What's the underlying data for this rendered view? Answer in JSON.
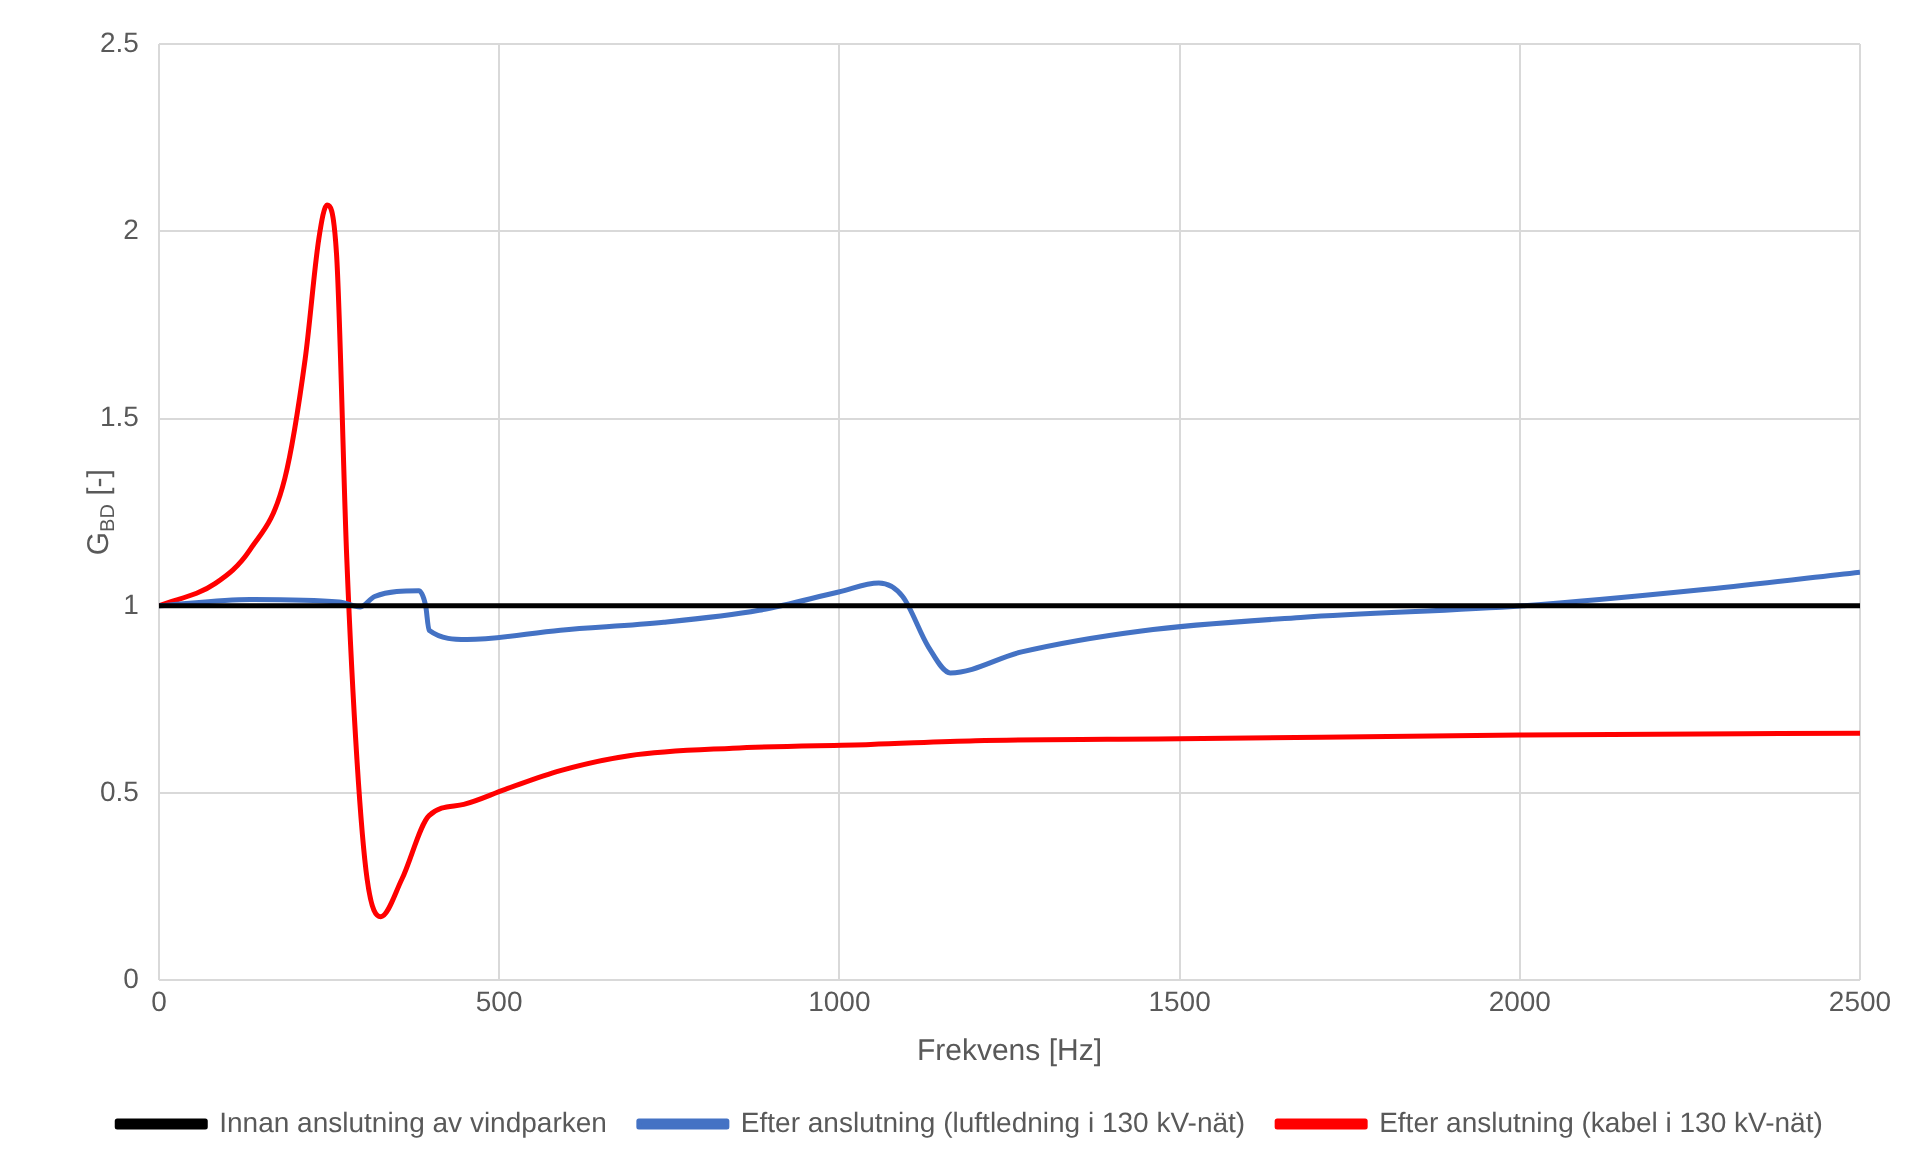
{
  "chart_data": {
    "type": "line",
    "xlabel": "Frekvens [Hz]",
    "ylabel": "G$_{BD}$ [-]",
    "xlim": [
      0,
      2500
    ],
    "xticks": [
      0,
      500,
      1000,
      1500,
      2000,
      2500
    ],
    "ylim": [
      0,
      2.5
    ],
    "yticks": [
      0,
      0.5,
      1,
      1.5,
      2,
      2.5
    ],
    "grid": true,
    "legend": "bottom",
    "marker": "none",
    "line_style": "solid",
    "series": [
      {
        "name": "Innan anslutning av vindparken",
        "color": "#000000",
        "x": [
          0,
          2500
        ],
        "values": [
          1,
          1
        ]
      },
      {
        "name": "Efter anslutning (luftledning i 130 kV-nät)",
        "color": "#4472c4",
        "x": [
          0,
          134,
          265,
          296,
          317,
          382,
          392,
          397,
          453,
          590,
          742,
          882,
          999,
          1058,
          1093,
          1131,
          1163,
          1268,
          1444,
          1678,
          2005,
          2263,
          2500
        ],
        "values": [
          1,
          1.017,
          1.01,
          0.997,
          1.025,
          1.04,
          1,
          0.935,
          0.91,
          0.935,
          0.956,
          0.988,
          1.037,
          1.061,
          1.025,
          0.89,
          0.821,
          0.877,
          0.933,
          0.969,
          1,
          1.042,
          1.09
        ]
      },
      {
        "name": "Efter anslutning (kabel i 130 kV-nät)",
        "color": "#ff0000",
        "x": [
          0,
          83,
          134,
          185,
          215,
          235,
          247,
          261,
          276,
          291,
          306,
          326,
          357,
          397,
          448,
          509,
          590,
          691,
          843,
          1046,
          1200,
          1500,
          2000,
          2500
        ],
        "values": [
          1,
          1.06,
          1.15,
          1.34,
          1.66,
          1.98,
          2.07,
          1.94,
          1.13,
          0.59,
          0.27,
          0.17,
          0.27,
          0.44,
          0.47,
          0.51,
          0.56,
          0.6,
          0.62,
          0.63,
          0.64,
          0.645,
          0.655,
          0.66
        ]
      }
    ]
  }
}
